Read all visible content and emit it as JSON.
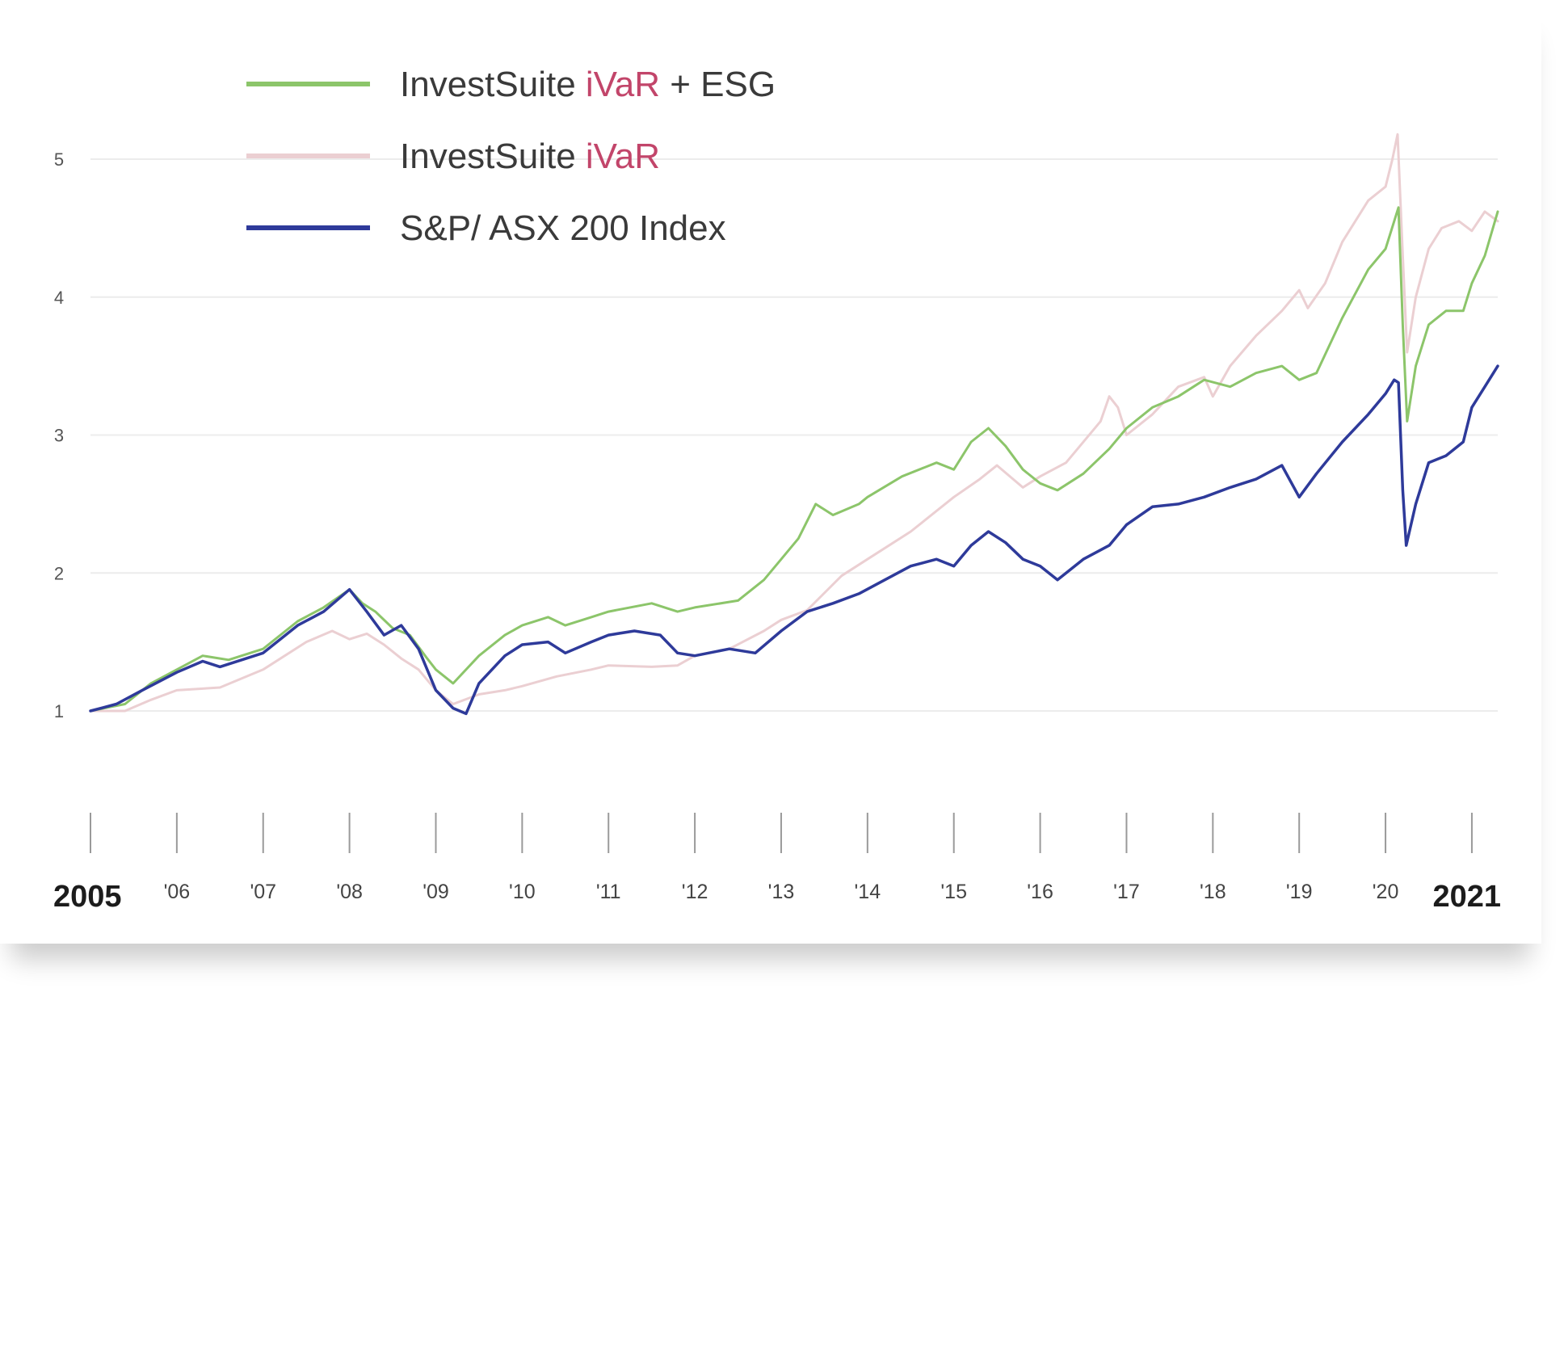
{
  "colors": {
    "esg": "#8cc56a",
    "ivar": "#ebcfd2",
    "index": "#2e3a9a",
    "accent": "#c2456a"
  },
  "legend": [
    {
      "prefix": "InvestSuite ",
      "accent": "iVaR",
      "suffix": " + ESG",
      "series": "esg"
    },
    {
      "prefix": "InvestSuite ",
      "accent": "iVaR",
      "suffix": "",
      "series": "ivar"
    },
    {
      "prefix": "S&P/ ASX 200 Index",
      "accent": "",
      "suffix": "",
      "series": "index"
    }
  ],
  "chart_data": {
    "type": "line",
    "title": "",
    "xlabel": "",
    "ylabel": "",
    "xlim": [
      2005.0,
      2021.3
    ],
    "ylim": [
      1,
      5
    ],
    "yticks": [
      1,
      2,
      3,
      4,
      5
    ],
    "xticks": [
      {
        "x": 2005,
        "label": "2005",
        "bold": true
      },
      {
        "x": 2006,
        "label": "'06"
      },
      {
        "x": 2007,
        "label": "'07"
      },
      {
        "x": 2008,
        "label": "'08"
      },
      {
        "x": 2009,
        "label": "'09"
      },
      {
        "x": 2010,
        "label": "'10"
      },
      {
        "x": 2011,
        "label": "'11"
      },
      {
        "x": 2012,
        "label": "'12"
      },
      {
        "x": 2013,
        "label": "'13"
      },
      {
        "x": 2014,
        "label": "'14"
      },
      {
        "x": 2015,
        "label": "'15"
      },
      {
        "x": 2016,
        "label": "'16"
      },
      {
        "x": 2017,
        "label": "'17"
      },
      {
        "x": 2018,
        "label": "'18"
      },
      {
        "x": 2019,
        "label": "'19"
      },
      {
        "x": 2020,
        "label": "'20"
      },
      {
        "x": 2021,
        "label": "2021",
        "bold": true
      }
    ],
    "series": [
      {
        "name": "InvestSuite iVaR",
        "key": "ivar",
        "points": [
          [
            2005.0,
            1.0
          ],
          [
            2005.4,
            1.0
          ],
          [
            2005.7,
            1.08
          ],
          [
            2006.0,
            1.15
          ],
          [
            2006.5,
            1.17
          ],
          [
            2007.0,
            1.3
          ],
          [
            2007.5,
            1.5
          ],
          [
            2007.8,
            1.58
          ],
          [
            2008.0,
            1.52
          ],
          [
            2008.2,
            1.56
          ],
          [
            2008.4,
            1.48
          ],
          [
            2008.6,
            1.38
          ],
          [
            2008.8,
            1.3
          ],
          [
            2009.0,
            1.15
          ],
          [
            2009.2,
            1.05
          ],
          [
            2009.5,
            1.12
          ],
          [
            2009.8,
            1.15
          ],
          [
            2010.0,
            1.18
          ],
          [
            2010.4,
            1.25
          ],
          [
            2010.8,
            1.3
          ],
          [
            2011.0,
            1.33
          ],
          [
            2011.5,
            1.32
          ],
          [
            2011.8,
            1.33
          ],
          [
            2012.0,
            1.4
          ],
          [
            2012.4,
            1.45
          ],
          [
            2012.8,
            1.58
          ],
          [
            2013.0,
            1.66
          ],
          [
            2013.3,
            1.73
          ],
          [
            2013.7,
            1.98
          ],
          [
            2014.0,
            2.1
          ],
          [
            2014.5,
            2.3
          ],
          [
            2015.0,
            2.55
          ],
          [
            2015.3,
            2.68
          ],
          [
            2015.5,
            2.78
          ],
          [
            2015.8,
            2.62
          ],
          [
            2016.0,
            2.7
          ],
          [
            2016.3,
            2.8
          ],
          [
            2016.7,
            3.1
          ],
          [
            2016.8,
            3.28
          ],
          [
            2016.9,
            3.2
          ],
          [
            2017.0,
            3.0
          ],
          [
            2017.3,
            3.15
          ],
          [
            2017.6,
            3.35
          ],
          [
            2017.9,
            3.42
          ],
          [
            2018.0,
            3.28
          ],
          [
            2018.2,
            3.5
          ],
          [
            2018.5,
            3.72
          ],
          [
            2018.8,
            3.9
          ],
          [
            2019.0,
            4.05
          ],
          [
            2019.1,
            3.92
          ],
          [
            2019.3,
            4.1
          ],
          [
            2019.5,
            4.4
          ],
          [
            2019.8,
            4.7
          ],
          [
            2020.0,
            4.8
          ],
          [
            2020.08,
            5.0
          ],
          [
            2020.14,
            5.18
          ],
          [
            2020.2,
            4.3
          ],
          [
            2020.25,
            3.6
          ],
          [
            2020.35,
            4.0
          ],
          [
            2020.5,
            4.35
          ],
          [
            2020.65,
            4.5
          ],
          [
            2020.85,
            4.55
          ],
          [
            2021.0,
            4.48
          ],
          [
            2021.15,
            4.62
          ],
          [
            2021.3,
            4.55
          ]
        ]
      },
      {
        "name": "InvestSuite iVaR + ESG",
        "key": "esg",
        "points": [
          [
            2005.0,
            1.0
          ],
          [
            2005.4,
            1.05
          ],
          [
            2005.7,
            1.2
          ],
          [
            2006.0,
            1.3
          ],
          [
            2006.3,
            1.4
          ],
          [
            2006.6,
            1.37
          ],
          [
            2007.0,
            1.45
          ],
          [
            2007.4,
            1.65
          ],
          [
            2007.7,
            1.75
          ],
          [
            2008.0,
            1.88
          ],
          [
            2008.15,
            1.78
          ],
          [
            2008.3,
            1.72
          ],
          [
            2008.5,
            1.6
          ],
          [
            2008.7,
            1.55
          ],
          [
            2008.9,
            1.38
          ],
          [
            2009.0,
            1.3
          ],
          [
            2009.2,
            1.2
          ],
          [
            2009.5,
            1.4
          ],
          [
            2009.8,
            1.55
          ],
          [
            2010.0,
            1.62
          ],
          [
            2010.3,
            1.68
          ],
          [
            2010.5,
            1.62
          ],
          [
            2010.8,
            1.68
          ],
          [
            2011.0,
            1.72
          ],
          [
            2011.5,
            1.78
          ],
          [
            2011.8,
            1.72
          ],
          [
            2012.0,
            1.75
          ],
          [
            2012.5,
            1.8
          ],
          [
            2012.8,
            1.95
          ],
          [
            2013.0,
            2.1
          ],
          [
            2013.2,
            2.25
          ],
          [
            2013.4,
            2.5
          ],
          [
            2013.6,
            2.42
          ],
          [
            2013.9,
            2.5
          ],
          [
            2014.0,
            2.55
          ],
          [
            2014.4,
            2.7
          ],
          [
            2014.8,
            2.8
          ],
          [
            2015.0,
            2.75
          ],
          [
            2015.2,
            2.95
          ],
          [
            2015.4,
            3.05
          ],
          [
            2015.6,
            2.92
          ],
          [
            2015.8,
            2.75
          ],
          [
            2016.0,
            2.65
          ],
          [
            2016.2,
            2.6
          ],
          [
            2016.5,
            2.72
          ],
          [
            2016.8,
            2.9
          ],
          [
            2017.0,
            3.05
          ],
          [
            2017.3,
            3.2
          ],
          [
            2017.6,
            3.28
          ],
          [
            2017.9,
            3.4
          ],
          [
            2018.2,
            3.35
          ],
          [
            2018.5,
            3.45
          ],
          [
            2018.8,
            3.5
          ],
          [
            2019.0,
            3.4
          ],
          [
            2019.2,
            3.45
          ],
          [
            2019.5,
            3.85
          ],
          [
            2019.8,
            4.2
          ],
          [
            2020.0,
            4.35
          ],
          [
            2020.1,
            4.55
          ],
          [
            2020.15,
            4.65
          ],
          [
            2020.2,
            3.8
          ],
          [
            2020.25,
            3.1
          ],
          [
            2020.35,
            3.5
          ],
          [
            2020.5,
            3.8
          ],
          [
            2020.7,
            3.9
          ],
          [
            2020.9,
            3.9
          ],
          [
            2021.0,
            4.1
          ],
          [
            2021.15,
            4.3
          ],
          [
            2021.3,
            4.62
          ]
        ]
      },
      {
        "name": "S&P/ ASX 200 Index",
        "key": "index",
        "points": [
          [
            2005.0,
            1.0
          ],
          [
            2005.3,
            1.05
          ],
          [
            2005.6,
            1.15
          ],
          [
            2006.0,
            1.28
          ],
          [
            2006.3,
            1.36
          ],
          [
            2006.5,
            1.32
          ],
          [
            2007.0,
            1.42
          ],
          [
            2007.4,
            1.62
          ],
          [
            2007.7,
            1.72
          ],
          [
            2008.0,
            1.88
          ],
          [
            2008.2,
            1.72
          ],
          [
            2008.4,
            1.55
          ],
          [
            2008.6,
            1.62
          ],
          [
            2008.8,
            1.45
          ],
          [
            2009.0,
            1.15
          ],
          [
            2009.2,
            1.02
          ],
          [
            2009.35,
            0.98
          ],
          [
            2009.5,
            1.2
          ],
          [
            2009.8,
            1.4
          ],
          [
            2010.0,
            1.48
          ],
          [
            2010.3,
            1.5
          ],
          [
            2010.5,
            1.42
          ],
          [
            2010.8,
            1.5
          ],
          [
            2011.0,
            1.55
          ],
          [
            2011.3,
            1.58
          ],
          [
            2011.6,
            1.55
          ],
          [
            2011.8,
            1.42
          ],
          [
            2012.0,
            1.4
          ],
          [
            2012.4,
            1.45
          ],
          [
            2012.7,
            1.42
          ],
          [
            2013.0,
            1.58
          ],
          [
            2013.3,
            1.72
          ],
          [
            2013.6,
            1.78
          ],
          [
            2013.9,
            1.85
          ],
          [
            2014.2,
            1.95
          ],
          [
            2014.5,
            2.05
          ],
          [
            2014.8,
            2.1
          ],
          [
            2015.0,
            2.05
          ],
          [
            2015.2,
            2.2
          ],
          [
            2015.4,
            2.3
          ],
          [
            2015.6,
            2.22
          ],
          [
            2015.8,
            2.1
          ],
          [
            2016.0,
            2.05
          ],
          [
            2016.2,
            1.95
          ],
          [
            2016.5,
            2.1
          ],
          [
            2016.8,
            2.2
          ],
          [
            2017.0,
            2.35
          ],
          [
            2017.3,
            2.48
          ],
          [
            2017.6,
            2.5
          ],
          [
            2017.9,
            2.55
          ],
          [
            2018.2,
            2.62
          ],
          [
            2018.5,
            2.68
          ],
          [
            2018.8,
            2.78
          ],
          [
            2019.0,
            2.55
          ],
          [
            2019.2,
            2.72
          ],
          [
            2019.5,
            2.95
          ],
          [
            2019.8,
            3.15
          ],
          [
            2020.0,
            3.3
          ],
          [
            2020.1,
            3.4
          ],
          [
            2020.15,
            3.38
          ],
          [
            2020.2,
            2.6
          ],
          [
            2020.24,
            2.2
          ],
          [
            2020.35,
            2.5
          ],
          [
            2020.5,
            2.8
          ],
          [
            2020.7,
            2.85
          ],
          [
            2020.9,
            2.95
          ],
          [
            2021.0,
            3.2
          ],
          [
            2021.15,
            3.35
          ],
          [
            2021.3,
            3.5
          ]
        ]
      }
    ]
  }
}
